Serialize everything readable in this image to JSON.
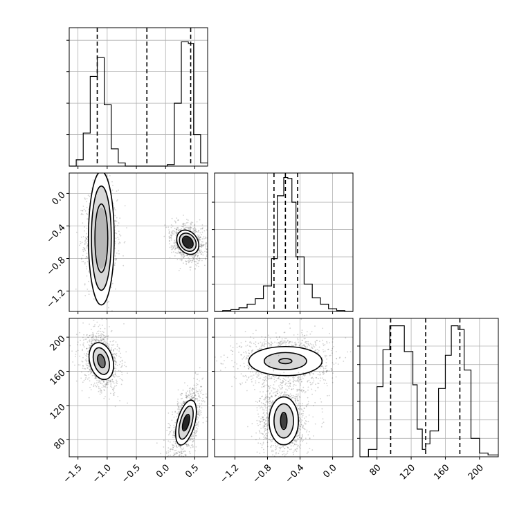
{
  "chart_data": {
    "type": "corner",
    "parameters": [
      {
        "range": [
          -1.65,
          0.72
        ],
        "ticks": [
          -1.5,
          -1.0,
          -0.5,
          0.0,
          0.5
        ],
        "tick_labels": [
          "−1.5",
          "−1.0",
          "−0.5",
          "0.0",
          "0.5"
        ],
        "quantiles": [
          -1.17,
          -0.32,
          0.43
        ],
        "hist": {
          "edges": [
            -1.65,
            -1.53,
            -1.41,
            -1.29,
            -1.17,
            -1.05,
            -0.93,
            -0.81,
            -0.69,
            -0.57,
            -0.45,
            -0.33,
            -0.21,
            -0.09,
            0.03,
            0.15,
            0.27,
            0.39,
            0.48,
            0.6,
            0.72
          ],
          "counts": [
            0,
            4,
            21,
            57,
            69,
            39,
            11,
            2,
            0,
            0,
            0,
            0,
            0,
            0,
            1,
            40,
            79,
            78,
            20,
            2
          ],
          "ymax": 88,
          "yticks": [
            20,
            40,
            60,
            80
          ]
        }
      },
      {
        "range": [
          -1.45,
          0.25
        ],
        "ticks": [
          -1.2,
          -0.8,
          -0.4,
          0.0
        ],
        "tick_labels": [
          "−1.2",
          "−0.8",
          "−0.4",
          "0.0"
        ],
        "quantiles": [
          -0.72,
          -0.58,
          -0.43
        ],
        "hist": {
          "edges": [
            -1.45,
            -1.35,
            -1.25,
            -1.15,
            -1.05,
            -0.95,
            -0.85,
            -0.75,
            -0.72,
            -0.68,
            -0.6,
            -0.55,
            -0.5,
            -0.45,
            -0.4,
            -0.35,
            -0.25,
            -0.15,
            -0.05,
            0.05,
            0.15,
            0.25
          ],
          "counts": [
            0,
            1,
            2,
            4,
            8,
            14,
            28,
            58,
            58,
            127,
            147,
            146,
            120,
            60,
            60,
            30,
            15,
            8,
            3,
            1,
            0
          ],
          "ymax": 152,
          "yticks": [
            30,
            60,
            90,
            120
          ]
        }
      },
      {
        "range": [
          60,
          222
        ],
        "ticks": [
          80,
          120,
          160,
          200
        ],
        "tick_labels": [
          "80",
          "120",
          "160",
          "200"
        ],
        "quantiles": [
          96,
          137,
          177
        ],
        "hist": {
          "edges": [
            60,
            70,
            80,
            87,
            95,
            102,
            112,
            122,
            127,
            133,
            137,
            142,
            152,
            160,
            167,
            175,
            182,
            190,
            200,
            210,
            222
          ],
          "counts": [
            0,
            4,
            38,
            58,
            71,
            71,
            57,
            39,
            15,
            4,
            7,
            14,
            37,
            55,
            71,
            69,
            47,
            10,
            2,
            1
          ],
          "ymax": 75,
          "yticks": [
            10,
            20,
            30,
            40,
            50,
            60
          ]
        }
      }
    ],
    "pairs": [
      {
        "x_param": 0,
        "y_param": 1,
        "modes": [
          {
            "cx": -1.1,
            "cy": -0.55,
            "sx": 0.1,
            "sy": 0.22,
            "rot": 0,
            "n": 1300,
            "levels": [
              [
                0.11,
                0.42
              ],
              [
                0.17,
                0.64
              ],
              [
                0.22,
                0.82
              ]
            ],
            "peak": 0.1
          },
          {
            "cx": 0.38,
            "cy": -0.6,
            "sx": 0.1,
            "sy": 0.09,
            "rot": -35,
            "n": 900,
            "levels": [
              [
                0.08,
                0.08
              ],
              [
                0.13,
                0.12
              ],
              [
                0.17,
                0.16
              ]
            ],
            "peak": 0.9
          }
        ]
      },
      {
        "x_param": 0,
        "y_param": 2,
        "modes": [
          {
            "cx": -1.1,
            "cy": 172,
            "sx": 0.11,
            "sy": 12,
            "rot": -15,
            "n": 1100,
            "levels": [
              [
                0.06,
                8
              ],
              [
                0.13,
                16
              ],
              [
                0.2,
                22
              ]
            ],
            "peak": 0.5
          },
          {
            "cx": 0.35,
            "cy": 100,
            "sx": 0.08,
            "sy": 16,
            "rot": 15,
            "n": 1000,
            "levels": [
              [
                0.05,
                10
              ],
              [
                0.1,
                20
              ],
              [
                0.15,
                27
              ]
            ],
            "peak": 0.9
          }
        ]
      },
      {
        "x_param": 1,
        "y_param": 2,
        "modes": [
          {
            "cx": -0.58,
            "cy": 172,
            "sx": 0.2,
            "sy": 11,
            "rot": 0,
            "n": 1400,
            "levels": [
              [
                0.08,
                3
              ],
              [
                0.26,
                10
              ],
              [
                0.45,
                17
              ]
            ],
            "peak": 0.05
          },
          {
            "cx": -0.6,
            "cy": 102,
            "sx": 0.11,
            "sy": 15,
            "rot": 0,
            "n": 1200,
            "levels": [
              [
                0.04,
                10
              ],
              [
                0.12,
                20
              ],
              [
                0.18,
                28
              ]
            ],
            "peak": 0.75
          }
        ]
      }
    ]
  }
}
